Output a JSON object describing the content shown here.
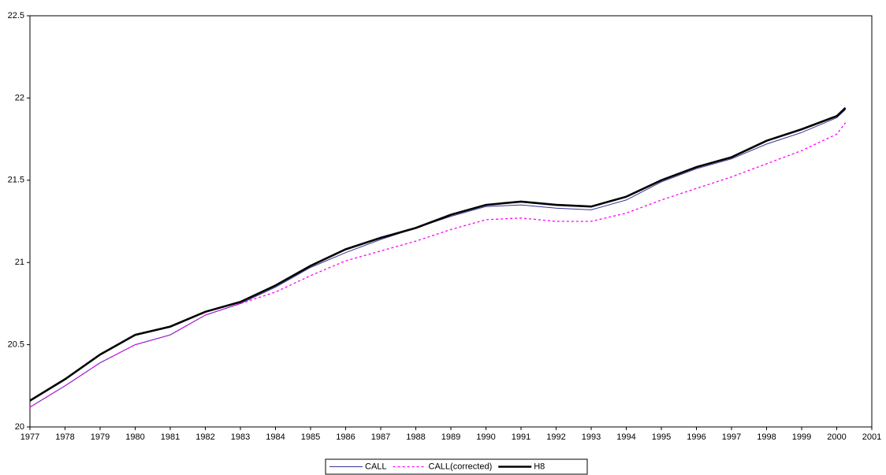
{
  "chart_data": {
    "type": "line",
    "x": [
      1977,
      1978,
      1979,
      1980,
      1981,
      1982,
      1983,
      1984,
      1985,
      1986,
      1987,
      1988,
      1989,
      1990,
      1991,
      1992,
      1993,
      1994,
      1995,
      1996,
      1997,
      1998,
      1999,
      2000,
      2000.25
    ],
    "series": [
      {
        "name": "CALL",
        "color": "#333399",
        "style": "solid",
        "values": [
          20.12,
          20.25,
          20.39,
          20.5,
          20.56,
          20.68,
          20.75,
          20.85,
          20.97,
          21.06,
          21.14,
          21.21,
          21.28,
          21.34,
          21.35,
          21.33,
          21.32,
          21.38,
          21.49,
          21.57,
          21.63,
          21.72,
          21.79,
          21.88,
          21.93
        ]
      },
      {
        "name": "CALL(corrected)",
        "color": "#ff00ff",
        "style": "dotted",
        "values": [
          20.12,
          20.25,
          20.39,
          20.5,
          20.56,
          20.68,
          20.75,
          20.82,
          20.92,
          21.01,
          21.07,
          21.13,
          21.2,
          21.26,
          21.27,
          21.25,
          21.25,
          21.3,
          21.38,
          21.45,
          21.52,
          21.6,
          21.68,
          21.78,
          21.85
        ]
      },
      {
        "name": "H8",
        "color": "#000000",
        "style": "solid",
        "values": [
          20.16,
          20.29,
          20.44,
          20.56,
          20.61,
          20.7,
          20.76,
          20.86,
          20.98,
          21.08,
          21.15,
          21.21,
          21.29,
          21.35,
          21.37,
          21.35,
          21.34,
          21.4,
          21.5,
          21.58,
          21.64,
          21.74,
          21.81,
          21.89,
          21.94
        ]
      }
    ],
    "xlim": [
      1977,
      2001
    ],
    "xticks": [
      1977,
      1978,
      1979,
      1980,
      1981,
      1982,
      1983,
      1984,
      1985,
      1986,
      1987,
      1988,
      1989,
      1990,
      1991,
      1992,
      1993,
      1994,
      1995,
      1996,
      1997,
      1998,
      1999,
      2000,
      2001
    ],
    "ylim": [
      20,
      22.5
    ],
    "yticks": [
      20,
      20.5,
      21,
      21.5,
      22,
      22.5
    ],
    "grid": false,
    "legend": "bottom"
  }
}
